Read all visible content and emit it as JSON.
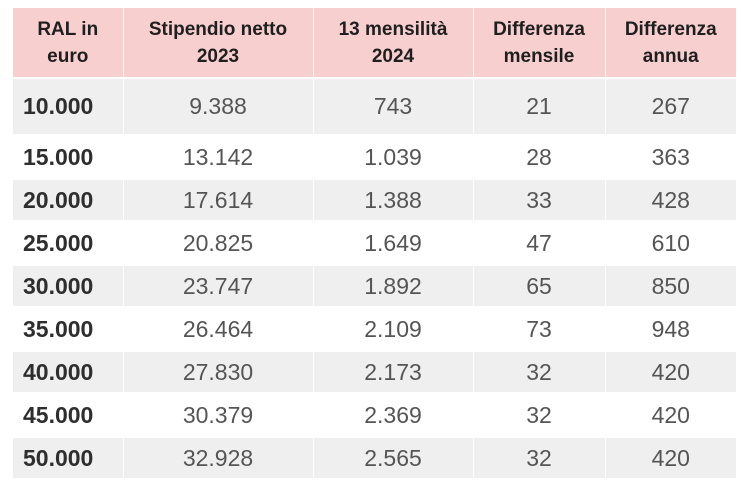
{
  "table": {
    "headers": [
      "RAL in\neuro",
      "Stipendio netto\n2023",
      "13 mensilità\n2024",
      "Differenza\nmensile",
      "Differenza\nannua"
    ],
    "rows": [
      [
        "10.000",
        "9.388",
        "743",
        "21",
        "267"
      ],
      [
        "15.000",
        "13.142",
        "1.039",
        "28",
        "363"
      ],
      [
        "20.000",
        "17.614",
        "1.388",
        "33",
        "428"
      ],
      [
        "25.000",
        "20.825",
        "1.649",
        "47",
        "610"
      ],
      [
        "30.000",
        "23.747",
        "1.892",
        "65",
        "850"
      ],
      [
        "35.000",
        "26.464",
        "2.109",
        "73",
        "948"
      ],
      [
        "40.000",
        "27.830",
        "2.173",
        "32",
        "420"
      ],
      [
        "45.000",
        "30.379",
        "2.369",
        "32",
        "420"
      ],
      [
        "50.000",
        "32.928",
        "2.565",
        "32",
        "420"
      ]
    ]
  }
}
